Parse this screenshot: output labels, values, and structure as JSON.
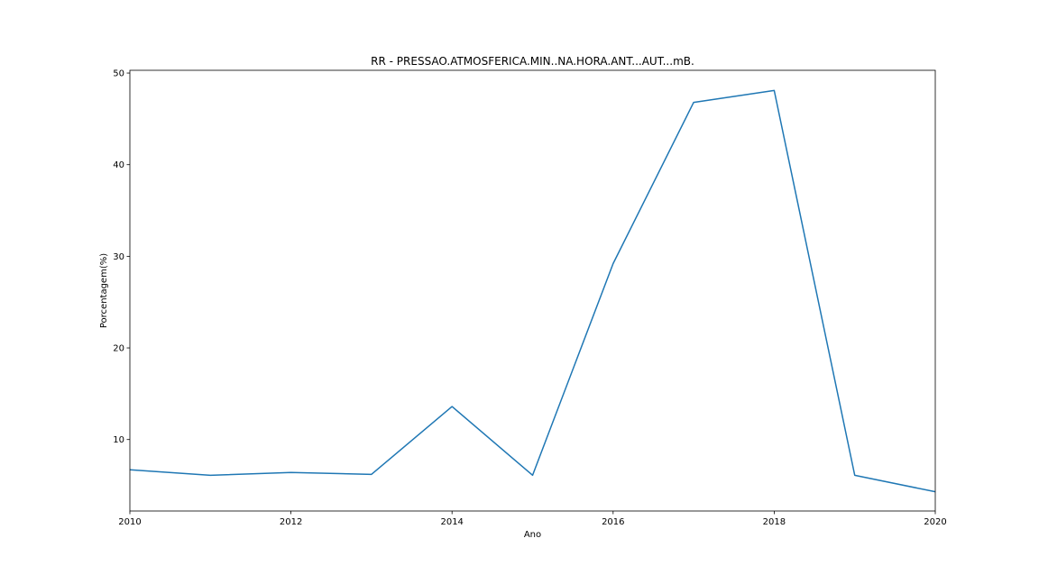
{
  "chart_data": {
    "type": "line",
    "title": "RR - PRESSAO.ATMOSFERICA.MIN..NA.HORA.ANT...AUT...mB.",
    "xlabel": "Ano",
    "ylabel": "Porcentagem(%)",
    "xlim": [
      2010,
      2020
    ],
    "ylim": [
      2.2,
      50.3
    ],
    "xticks": [
      2010,
      2012,
      2014,
      2016,
      2018,
      2020
    ],
    "yticks": [
      10,
      20,
      30,
      40,
      50
    ],
    "grid": false,
    "legend": "none",
    "series": [
      {
        "color": "#1f77b4",
        "x": [
          2010,
          2011,
          2012,
          2013,
          2014,
          2015,
          2016,
          2017,
          2018,
          2019,
          2020
        ],
        "y": [
          6.7,
          6.1,
          6.4,
          6.2,
          13.6,
          6.1,
          29.2,
          46.8,
          48.1,
          6.1,
          4.3
        ]
      }
    ]
  }
}
